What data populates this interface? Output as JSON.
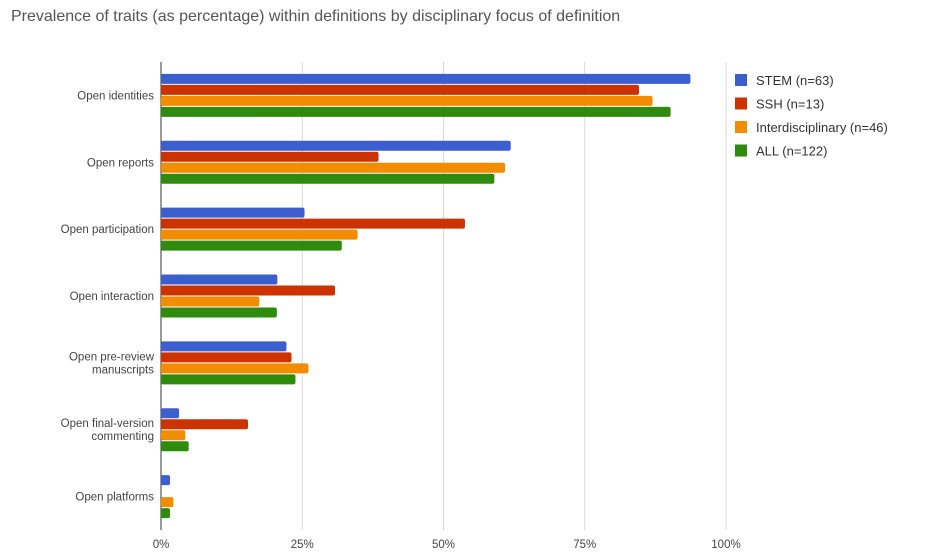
{
  "chart_data": {
    "type": "bar",
    "orientation": "horizontal",
    "title": "Prevalence of traits (as percentage) within definitions by disciplinary focus of definition",
    "xlabel": "",
    "ylabel": "",
    "xlim": [
      0,
      100
    ],
    "grid": true,
    "legend_position": "right",
    "categories": [
      [
        "Open identities"
      ],
      [
        "Open reports"
      ],
      [
        "Open participation"
      ],
      [
        "Open interaction"
      ],
      [
        "Open pre-review",
        "manuscripts"
      ],
      [
        "Open final-version",
        "commenting"
      ],
      [
        "Open platforms"
      ]
    ],
    "x_ticks": [
      {
        "value": 0,
        "label": "0%"
      },
      {
        "value": 25,
        "label": "25%"
      },
      {
        "value": 50,
        "label": "50%"
      },
      {
        "value": 75,
        "label": "75%"
      },
      {
        "value": 100,
        "label": "100%"
      }
    ],
    "series": [
      {
        "name": "STEM (n=63)",
        "color": "#3b5fcf",
        "values": [
          93.7,
          61.9,
          25.4,
          20.6,
          22.2,
          3.2,
          1.6
        ]
      },
      {
        "name": "SSH (n=13)",
        "color": "#cc3300",
        "values": [
          84.6,
          38.5,
          53.8,
          30.8,
          23.1,
          15.4,
          0
        ]
      },
      {
        "name": "Interdisciplinary (n=46)",
        "color": "#f28c00",
        "values": [
          87.0,
          60.9,
          34.8,
          17.4,
          26.1,
          4.3,
          2.2
        ]
      },
      {
        "name": "ALL (n=122)",
        "color": "#2e8b0e",
        "values": [
          90.2,
          59.0,
          32.0,
          20.5,
          23.8,
          4.9,
          1.6
        ]
      }
    ]
  }
}
